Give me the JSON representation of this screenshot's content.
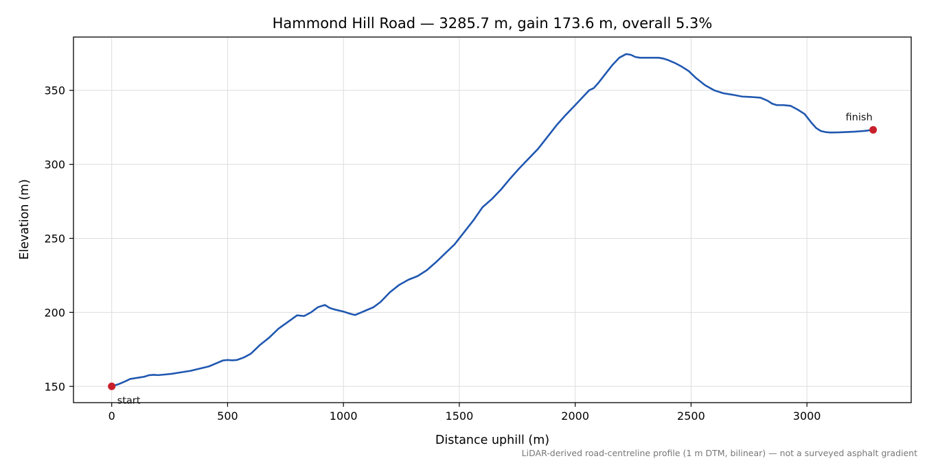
{
  "chart_data": {
    "type": "line",
    "title": "Hammond Hill Road — 3285.7 m, gain 173.6 m, overall 5.3%",
    "xlabel": "Distance uphill (m)",
    "ylabel": "Elevation (m)",
    "xlim": [
      -165,
      3450
    ],
    "ylim": [
      139,
      386
    ],
    "grid": true,
    "xticks": [
      0,
      500,
      1000,
      1500,
      2000,
      2500,
      3000
    ],
    "yticks": [
      150,
      200,
      250,
      300,
      350
    ],
    "line_color": "#1f57b0",
    "marker_color": "#c8202a",
    "footnote": "LiDAR-derived road-centreline profile (1 m DTM, bilinear) — not a surveyed asphalt gradient",
    "series": [
      {
        "x": [
          0,
          30,
          60,
          80,
          100,
          120,
          140,
          160,
          180,
          200,
          230,
          260,
          300,
          340,
          380,
          420,
          450,
          480,
          500,
          520,
          540,
          570,
          600,
          640,
          680,
          720,
          760,
          800,
          830,
          860,
          890,
          920,
          940,
          960,
          1000,
          1030,
          1050,
          1070,
          1100,
          1130,
          1160,
          1200,
          1240,
          1280,
          1320,
          1360,
          1400,
          1440,
          1480,
          1520,
          1560,
          1600,
          1640,
          1680,
          1720,
          1760,
          1800,
          1840,
          1880,
          1920,
          1960,
          2000,
          2030,
          2060,
          2080,
          2100,
          2130,
          2160,
          2190,
          2220,
          2240,
          2260,
          2280,
          2300,
          2330,
          2360,
          2380,
          2400,
          2430,
          2460,
          2490,
          2520,
          2560,
          2600,
          2640,
          2680,
          2720,
          2760,
          2800,
          2830,
          2850,
          2870,
          2900,
          2930,
          2960,
          2990,
          3020,
          3040,
          3060,
          3080,
          3100,
          3140,
          3200,
          3250,
          3285.7
        ],
        "y": [
          150,
          151.5,
          153.5,
          155,
          155.5,
          156,
          156.5,
          157.5,
          157.8,
          157.6,
          158,
          158.5,
          159.5,
          160.5,
          162,
          163.5,
          165.5,
          167.5,
          167.8,
          167.6,
          167.8,
          169.5,
          172,
          178,
          183,
          189,
          193.5,
          198,
          197.5,
          200,
          203.5,
          205,
          203,
          202,
          200.5,
          199,
          198.2,
          199.5,
          201.5,
          203.5,
          207,
          213.5,
          218.5,
          222,
          224.5,
          228.5,
          234,
          240,
          246,
          254,
          262,
          271,
          276.5,
          283,
          290.5,
          297.5,
          304,
          310.5,
          318.5,
          326.5,
          333.5,
          340,
          345,
          350,
          351.5,
          355,
          361,
          367,
          372,
          374.5,
          374,
          372.5,
          372,
          372,
          372,
          372,
          371.5,
          370.5,
          368.5,
          366,
          363,
          358.5,
          353.5,
          350,
          348,
          347,
          345.8,
          345.5,
          345,
          343,
          341,
          340,
          340,
          339.5,
          337,
          334,
          328,
          324.5,
          322.5,
          321.8,
          321.5,
          321.6,
          322,
          322.6,
          323.3
        ]
      }
    ],
    "annotations": [
      {
        "text": "start",
        "x": 0,
        "y": 150
      },
      {
        "text": "finish",
        "x": 3285.7,
        "y": 323.3
      }
    ]
  }
}
